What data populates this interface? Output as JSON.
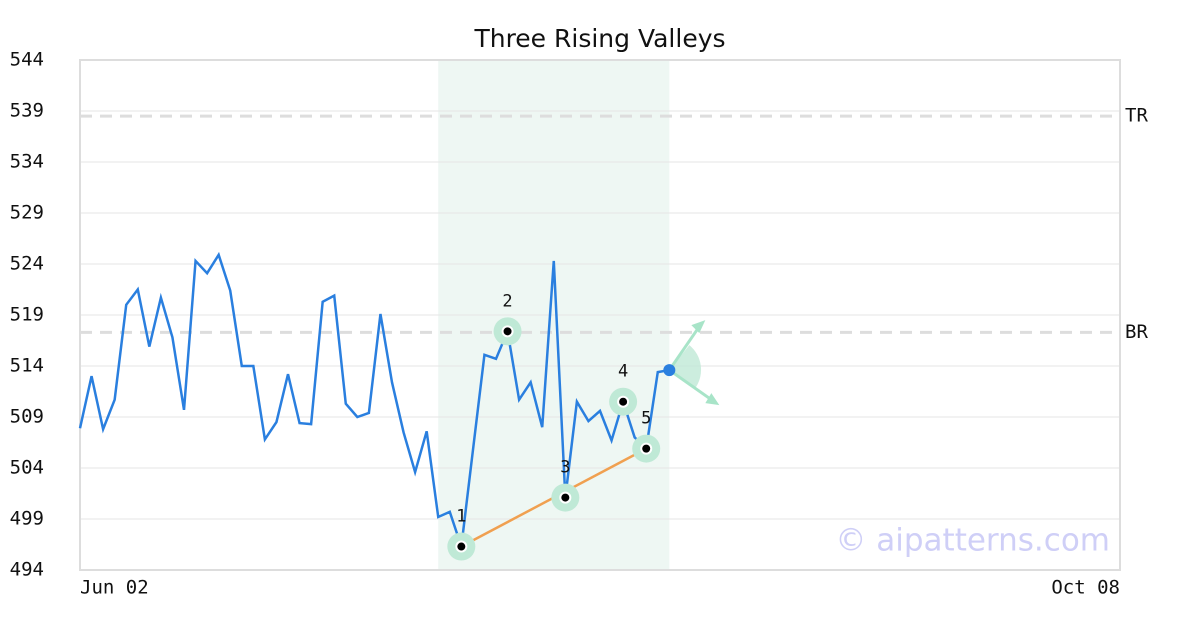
{
  "chart_data": {
    "type": "line",
    "title": "Three Rising Valleys",
    "color": "#2a7fdf",
    "x": [
      0,
      1,
      2,
      3,
      4,
      5,
      6,
      7,
      8,
      9,
      10,
      11,
      12,
      13,
      14,
      15,
      16,
      17,
      18,
      19,
      20,
      21,
      22,
      23,
      24,
      25,
      26,
      27,
      28,
      29,
      30,
      31,
      32,
      33,
      34,
      35,
      36,
      37,
      38,
      39,
      40,
      41,
      42,
      43,
      44,
      45,
      46,
      47,
      48,
      49
    ],
    "values": [
      507.9,
      513.0,
      507.8,
      510.7,
      520.0,
      521.5,
      515.9,
      520.7,
      516.8,
      509.7,
      524.3,
      523.1,
      524.9,
      521.4,
      514.0,
      514.0,
      506.8,
      508.5,
      513.2,
      508.4,
      508.3,
      520.3,
      520.9,
      510.3,
      509.0,
      509.4,
      519.1,
      512.4,
      507.5,
      503.6,
      507.6,
      499.2,
      499.7,
      496.3,
      505.7,
      515.1,
      514.7,
      517.4,
      510.7,
      512.4,
      508.0,
      524.3,
      501.1,
      510.5,
      508.6,
      509.6,
      506.7,
      510.5,
      507.0,
      505.9
    ],
    "extra_x": [
      50,
      51
    ],
    "extra_values": [
      513.4,
      513.6
    ],
    "xlim": [
      0,
      90
    ],
    "xticks": [
      {
        "value": 0,
        "label": "Jun 02"
      },
      {
        "value": 90,
        "label": "Oct 08"
      }
    ],
    "ylim": [
      494,
      544
    ],
    "yticks": [
      494,
      499,
      504,
      509,
      514,
      519,
      524,
      529,
      534,
      539,
      544
    ],
    "grid": true,
    "levels": [
      {
        "label": "TR",
        "value": 538.5
      },
      {
        "label": "BR",
        "value": 517.3
      }
    ],
    "highlight": [
      31,
      51
    ],
    "pattern_points": [
      {
        "label": "1",
        "x": 33,
        "value": 496.3
      },
      {
        "label": "2",
        "x": 37,
        "value": 517.4
      },
      {
        "label": "3",
        "x": 42,
        "value": 501.1
      },
      {
        "label": "4",
        "x": 47,
        "value": 510.5
      },
      {
        "label": "5",
        "x": 49,
        "value": 505.9
      }
    ],
    "watermark": "© aipatterns.com"
  }
}
